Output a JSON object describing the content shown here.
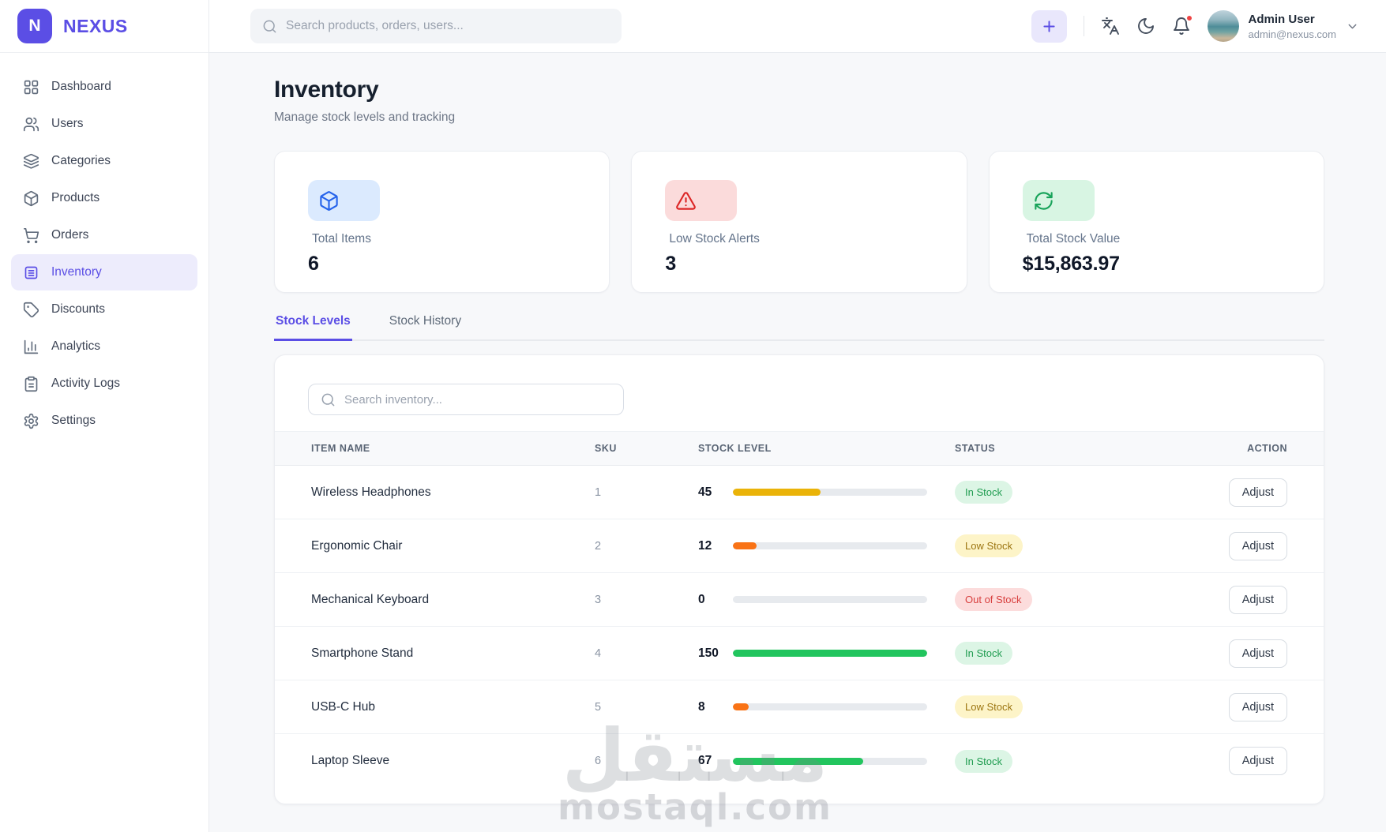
{
  "brand": {
    "name": "NEXUS",
    "logo_letter": "N"
  },
  "topbar": {
    "search_placeholder": "Search products, orders, users...",
    "actions": [
      {
        "icon": "plus-icon"
      },
      {
        "icon": "languages-icon"
      },
      {
        "icon": "moon-icon"
      },
      {
        "icon": "bell-icon",
        "has_notification_dot": true
      }
    ],
    "user": {
      "name": "Admin User",
      "email": "admin@nexus.com"
    }
  },
  "sidebar": {
    "items": [
      {
        "label": "Dashboard",
        "icon": "dashboard",
        "active": false
      },
      {
        "label": "Users",
        "icon": "users",
        "active": false
      },
      {
        "label": "Categories",
        "icon": "layers",
        "active": false
      },
      {
        "label": "Products",
        "icon": "package",
        "active": false
      },
      {
        "label": "Orders",
        "icon": "cart",
        "active": false
      },
      {
        "label": "Inventory",
        "icon": "inventory",
        "active": true
      },
      {
        "label": "Discounts",
        "icon": "tag",
        "active": false
      },
      {
        "label": "Analytics",
        "icon": "chart",
        "active": false
      },
      {
        "label": "Activity Logs",
        "icon": "clipboard",
        "active": false
      },
      {
        "label": "Settings",
        "icon": "gear",
        "active": false
      }
    ]
  },
  "page": {
    "title": "Inventory",
    "subtitle": "Manage stock levels and tracking"
  },
  "stats": [
    {
      "label": "Total Items",
      "value": "6",
      "icon": "package",
      "chip_bg": "#dbeafe",
      "icon_color": "#2563eb"
    },
    {
      "label": "Low Stock Alerts",
      "value": "3",
      "icon": "alert",
      "chip_bg": "#fbdbdb",
      "icon_color": "#dc2626"
    },
    {
      "label": "Total Stock Value",
      "value": "$15,863.97",
      "icon": "refresh",
      "chip_bg": "#d8f5e3",
      "icon_color": "#18a35a"
    }
  ],
  "tabs": [
    {
      "label": "Stock Levels",
      "active": true
    },
    {
      "label": "Stock History",
      "active": false
    }
  ],
  "inventory": {
    "search_placeholder": "Search inventory...",
    "columns": [
      "ITEM NAME",
      "SKU",
      "STOCK LEVEL",
      "STATUS",
      "ACTION"
    ],
    "rows": [
      {
        "name": "Wireless Headphones",
        "sku": "1",
        "stock": "45",
        "percent": 45,
        "bar_color": "#eab308",
        "status": "In Stock",
        "status_type": "success",
        "action": "Adjust"
      },
      {
        "name": "Ergonomic Chair",
        "sku": "2",
        "stock": "12",
        "percent": 12,
        "bar_color": "#f97316",
        "status": "Low Stock",
        "status_type": "warning",
        "action": "Adjust"
      },
      {
        "name": "Mechanical Keyboard",
        "sku": "3",
        "stock": "0",
        "percent": 0,
        "bar_color": "#e7eaee",
        "status": "Out of Stock",
        "status_type": "danger",
        "action": "Adjust"
      },
      {
        "name": "Smartphone Stand",
        "sku": "4",
        "stock": "150",
        "percent": 100,
        "bar_color": "#22c55e",
        "status": "In Stock",
        "status_type": "success",
        "action": "Adjust"
      },
      {
        "name": "USB-C Hub",
        "sku": "5",
        "stock": "8",
        "percent": 8,
        "bar_color": "#f97316",
        "status": "Low Stock",
        "status_type": "warning",
        "action": "Adjust"
      },
      {
        "name": "Laptop Sleeve",
        "sku": "6",
        "stock": "67",
        "percent": 67,
        "bar_color": "#22c55e",
        "status": "In Stock",
        "status_type": "success",
        "action": "Adjust"
      }
    ]
  },
  "watermark": {
    "arabic": "مستقل",
    "domain": "mostaql.com"
  },
  "colors": {
    "accent": "#5b4ee5",
    "accent_soft": "#edecfc",
    "success": "#22c55e",
    "warning": "#eab308",
    "danger": "#dc2626",
    "notification_dot": "#ef4444"
  }
}
